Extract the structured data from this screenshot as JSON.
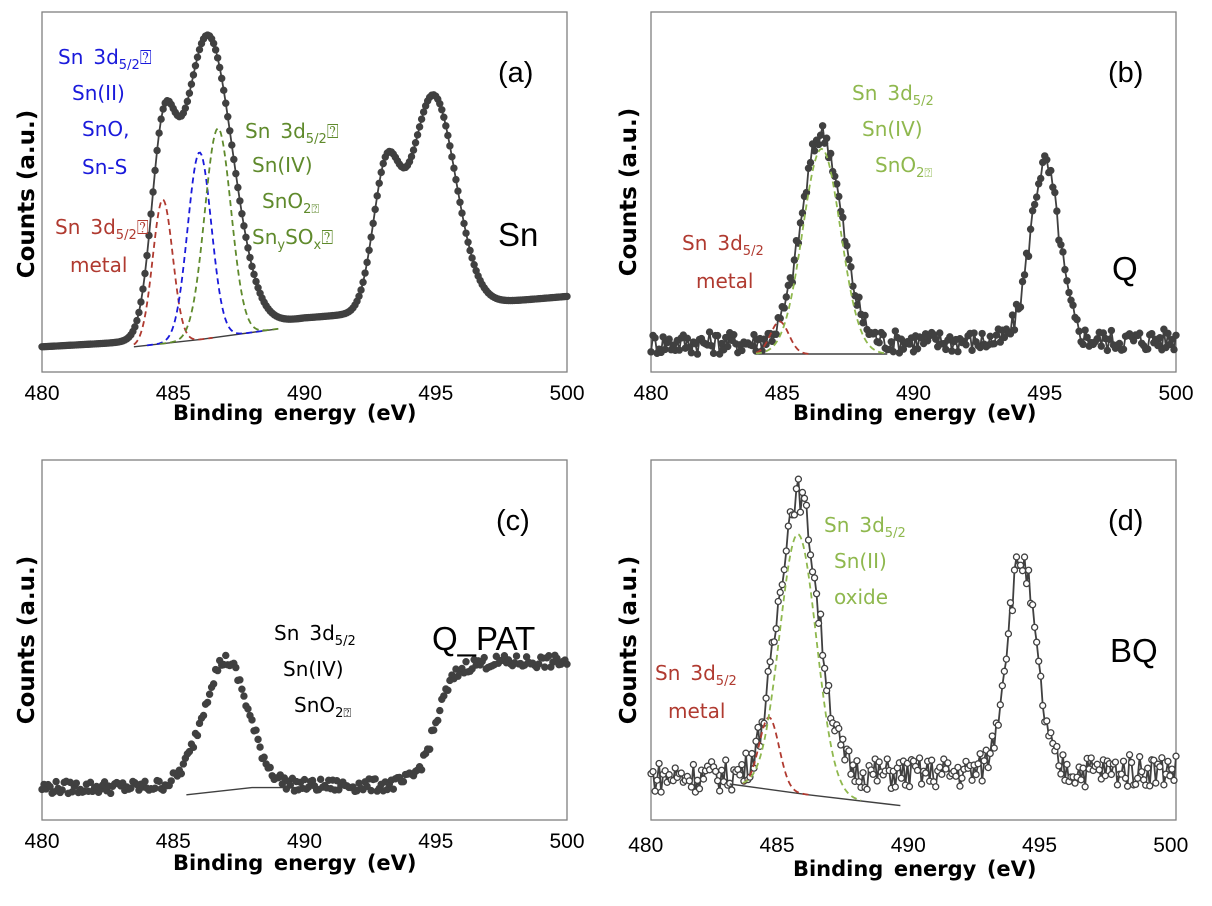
{
  "chart_data": [
    {
      "id": "a",
      "type": "line",
      "panel_label": "(a)",
      "sample_label": "Sn",
      "xlabel": "Binding energy (eV) ",
      "ylabel": "Counts (a.u.)",
      "xlim": [
        480,
        500
      ],
      "xticks": [
        "480",
        "485",
        "490",
        "495",
        "500"
      ],
      "ylim": [
        0,
        100
      ],
      "annotations": [
        {
          "lines": [
            "Sn 3d",
            "Sn(II)  ",
            "SnO, ",
            "Sn-S  "
          ],
          "sub": "5/2",
          "color": "#1a1adb"
        },
        {
          "lines": [
            "Sn 3d",
            "Sn(IV) ",
            "SnO",
            "Sn",
            " "
          ],
          "sub": "5/2",
          "color": "#5f8a2c"
        },
        {
          "lines": [
            "Sn 3d",
            "metal "
          ],
          "sub": "5/2",
          "color": "#b03a30"
        }
      ],
      "series": [
        {
          "role": "data",
          "style": "markers+line",
          "color": "#404040",
          "peaks": [
            {
              "x": 484.6,
              "h": 47,
              "w": 0.45
            },
            {
              "x": 486.3,
              "h": 83,
              "w": 0.95
            },
            {
              "x": 493.1,
              "h": 37,
              "w": 0.5
            },
            {
              "x": 494.9,
              "h": 59,
              "w": 0.85
            }
          ],
          "baseline": [
            [
              480,
              7
            ],
            [
              485,
              9
            ],
            [
              490,
              15
            ],
            [
              500,
              21
            ]
          ]
        },
        {
          "role": "background",
          "style": "solid",
          "color": "#404040",
          "points": [
            [
              483.5,
              7
            ],
            [
              486,
              9
            ],
            [
              489,
              12
            ]
          ]
        },
        {
          "role": "component",
          "name": "metal",
          "style": "dashed",
          "color": "#b03a30",
          "peak": {
            "x": 484.6,
            "h": 40,
            "w": 0.38
          },
          "range": [
            483.5,
            486.5
          ]
        },
        {
          "role": "component",
          "name": "Sn(II)",
          "style": "dashed",
          "color": "#1a1adb",
          "peak": {
            "x": 486.0,
            "h": 52,
            "w": 0.45
          },
          "range": [
            484.0,
            488.5
          ]
        },
        {
          "role": "component",
          "name": "Sn(IV)",
          "style": "dashed",
          "color": "#5f8a2c",
          "peak": {
            "x": 486.7,
            "h": 58,
            "w": 0.5
          },
          "range": [
            484.5,
            489.0
          ]
        }
      ]
    },
    {
      "id": "b",
      "type": "line",
      "panel_label": "(b)",
      "sample_label": "Q",
      "xlabel": "Binding energy (eV) ",
      "ylabel": "Counts (a.u.)",
      "xlim": [
        480,
        500
      ],
      "xticks": [
        "480",
        "485",
        "490",
        "495",
        "500"
      ],
      "ylim": [
        0,
        100
      ],
      "annotations": [
        {
          "lines": [
            "Sn 3d",
            "Sn(IV) ",
            "SnO"
          ],
          "sub": "5/2 ",
          "color": "#8fb84e"
        },
        {
          "lines": [
            "Sn 3d",
            "metal "
          ],
          "sub": "5/2 ",
          "color": "#b03a30"
        }
      ],
      "series": [
        {
          "role": "data",
          "style": "markers+line",
          "color": "#404040",
          "peaks": [
            {
              "x": 486.5,
              "h": 58,
              "w": 0.75
            },
            {
              "x": 495.0,
              "h": 49,
              "w": 0.55
            }
          ],
          "baseline": [
            [
              480,
              8
            ],
            [
              500,
              9
            ]
          ],
          "noise": 3.2
        },
        {
          "role": "background",
          "style": "solid",
          "color": "#404040",
          "points": [
            [
              484,
              5
            ],
            [
              489,
              5
            ]
          ]
        },
        {
          "role": "component",
          "name": "metal",
          "style": "dashed",
          "color": "#b03a30",
          "peak": {
            "x": 484.9,
            "h": 9,
            "w": 0.35
          },
          "range": [
            484.0,
            486.0
          ]
        },
        {
          "role": "component",
          "name": "Sn(IV)",
          "style": "dashed",
          "color": "#8fb84e",
          "peak": {
            "x": 486.5,
            "h": 57,
            "w": 0.72
          },
          "range": [
            484.0,
            489.0
          ]
        }
      ]
    },
    {
      "id": "c",
      "type": "line",
      "panel_label": "(c)",
      "sample_label": "Q_PAT",
      "xlabel": "Binding energy (eV) ",
      "ylabel": "Counts (a.u.)",
      "xlim": [
        480,
        500
      ],
      "xticks": [
        "480",
        "485",
        "490",
        "495",
        "500"
      ],
      "ylim": [
        0,
        100
      ],
      "annotations": [
        {
          "lines": [
            "Sn 3d",
            "Sn(IV) ",
            "SnO"
          ],
          "sub": "5/2 ",
          "color": "#000000"
        }
      ],
      "series": [
        {
          "role": "data",
          "style": "markers",
          "color": "#404040",
          "peaks": [
            {
              "x": 487.0,
              "h": 35,
              "w": 0.85
            }
          ],
          "step": {
            "x": 495.0,
            "h": 34,
            "w": 0.35
          },
          "baseline": [
            [
              480,
              9
            ],
            [
              500,
              10
            ]
          ],
          "noise": 1.8
        },
        {
          "role": "background",
          "style": "solid",
          "color": "#404040",
          "points": [
            [
              485.5,
              7
            ],
            [
              488,
              9
            ],
            [
              492.5,
              9
            ]
          ]
        }
      ]
    },
    {
      "id": "d",
      "type": "line",
      "panel_label": "(d)",
      "sample_label": "BQ",
      "xlabel": "Binding energy (eV) ",
      "ylabel": "Counts (a.u.)",
      "xlim": [
        480,
        500
      ],
      "xticks": [
        "480 ",
        "485 ",
        "490 ",
        "495 ",
        "500 "
      ],
      "ylim": [
        0,
        100
      ],
      "annotations": [
        {
          "lines": [
            "Sn 3d",
            "Sn(II) ",
            "oxide  "
          ],
          "sub": "5/2 ",
          "color": "#8fb84e"
        },
        {
          "lines": [
            "Sn 3d",
            "metal "
          ],
          "sub": "5/2 ",
          "color": "#b03a30"
        }
      ],
      "series": [
        {
          "role": "data",
          "style": "open-markers+line",
          "color": "#404040",
          "peaks": [
            {
              "x": 485.6,
              "h": 78,
              "w": 0.75
            },
            {
              "x": 494.1,
              "h": 59,
              "w": 0.55
            }
          ],
          "baseline": [
            [
              480,
              12
            ],
            [
              500,
              14
            ]
          ],
          "noise": 4.5
        },
        {
          "role": "background",
          "style": "solid",
          "color": "#404040",
          "points": [
            [
              483.0,
              10
            ],
            [
              486,
              7
            ],
            [
              489.5,
              4
            ]
          ]
        },
        {
          "role": "component",
          "name": "metal",
          "style": "dashed",
          "color": "#b03a30",
          "peak": {
            "x": 484.5,
            "h": 20,
            "w": 0.38
          },
          "range": [
            483.5,
            486.0
          ]
        },
        {
          "role": "component",
          "name": "Sn(II)",
          "style": "dashed",
          "color": "#8fb84e",
          "peak": {
            "x": 485.6,
            "h": 72,
            "w": 0.7
          },
          "range": [
            483.5,
            488.0
          ]
        }
      ]
    }
  ]
}
